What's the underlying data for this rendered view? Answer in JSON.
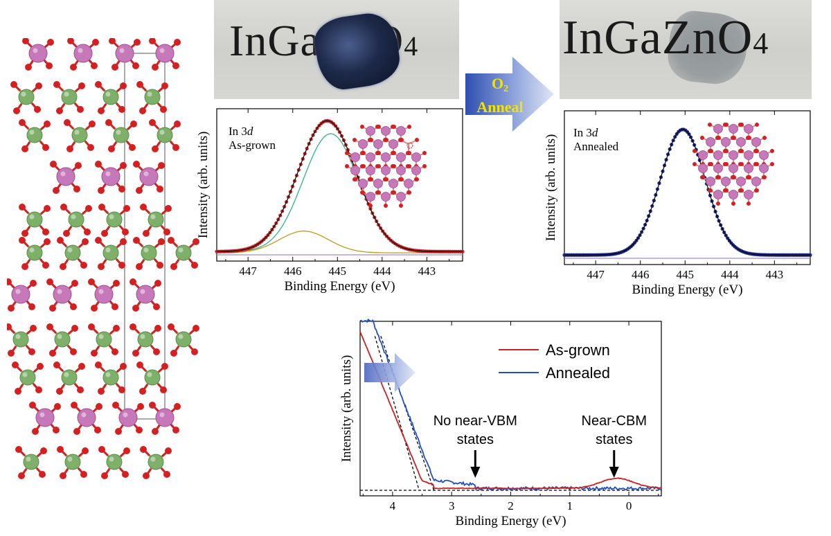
{
  "photos": {
    "left_label": "InGaZnO",
    "left_sub": "4",
    "right_label": "InGaZnO",
    "right_sub": "4"
  },
  "anneal_arrow": {
    "line1": "O",
    "line1_sub": "2",
    "line2": "Anneal"
  },
  "colors": {
    "as_grown": "#cc1f1f",
    "annealed": "#1f4fc8",
    "fit_main": "#2fb38a",
    "fit_minor": "#c9961e",
    "baseline": "#a78ad0",
    "in_atom": "#c678b8",
    "ga_atom": "#7fb069",
    "o_atom": "#d42020"
  },
  "chart_data": [
    {
      "type": "line",
      "panel": "In 3d As-grown",
      "annotation_line1": "In 3",
      "annotation_italic": "d",
      "annotation_line2": "As-grown",
      "xlabel": "Binding Energy (eV)",
      "ylabel": "Intensity (arb. units)",
      "xlim": [
        447.7,
        442.2
      ],
      "x_reversed": true,
      "xticks": [
        447,
        446,
        445,
        444,
        443
      ],
      "peak_center": 445.15,
      "series": [
        {
          "name": "data",
          "kind": "points",
          "color": "#cc1f1f"
        },
        {
          "name": "fit",
          "kind": "line",
          "color": "#000000"
        },
        {
          "name": "component-1",
          "kind": "line",
          "center": 445.15,
          "color": "#2fb38a"
        },
        {
          "name": "component-2",
          "kind": "line",
          "center": 445.75,
          "color": "#c9961e"
        },
        {
          "name": "background",
          "kind": "line",
          "color": "#a78ad0"
        }
      ]
    },
    {
      "type": "line",
      "panel": "In 3d Annealed",
      "annotation_line1": "In 3",
      "annotation_italic": "d",
      "annotation_line2": "Annealed",
      "xlabel": "Binding Energy (eV)",
      "ylabel": "Intensity (arb. units)",
      "xlim": [
        447.7,
        442.2
      ],
      "x_reversed": true,
      "xticks": [
        447,
        446,
        445,
        444,
        443
      ],
      "peak_center": 445.05,
      "series": [
        {
          "name": "data",
          "kind": "points",
          "color": "#1a2a8a"
        },
        {
          "name": "fit",
          "kind": "line",
          "color": "#000000"
        },
        {
          "name": "background",
          "kind": "line",
          "color": "#a78ad0"
        }
      ]
    },
    {
      "type": "line",
      "panel": "Valence band",
      "xlabel": "Binding Energy (eV)",
      "ylabel": "Intensity (arb. units)",
      "xlim": [
        4.55,
        -0.55
      ],
      "x_reversed": true,
      "xticks": [
        4,
        3,
        2,
        1,
        0
      ],
      "legend": [
        "As-grown",
        "Annealed"
      ],
      "legend_position": "top-right",
      "vbm_as_grown": 3.55,
      "vbm_annealed": 3.3,
      "cbm_feature": 0.2,
      "notes": {
        "no_vbm_line1": "No near-VBM",
        "no_vbm_line2": "states",
        "cbm_line1": "Near-CBM",
        "cbm_line2": "states"
      },
      "arrow_positions": [
        2.6,
        0.25
      ]
    }
  ]
}
